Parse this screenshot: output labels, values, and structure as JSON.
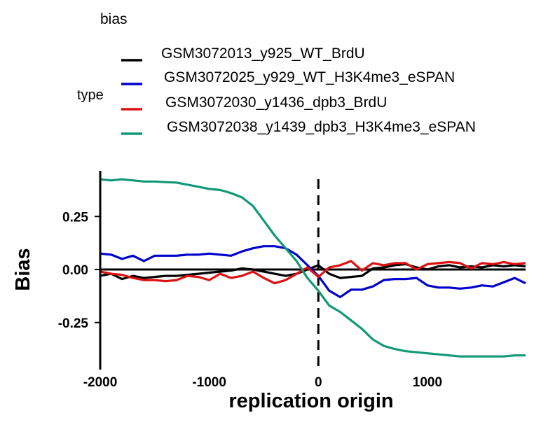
{
  "chart_data": {
    "type": "line",
    "legend": {
      "title": "bias",
      "group_label": "type",
      "placement": "top-left"
    },
    "xlabel": "replication origin",
    "ylabel": "Bias",
    "xlim": [
      -2000,
      1900
    ],
    "ylim": [
      -0.4,
      0.43
    ],
    "x_ticks": [
      {
        "value": -2000,
        "label": "-2000"
      },
      {
        "value": -1000,
        "label": "-1000"
      },
      {
        "value": 0,
        "label": "0"
      },
      {
        "value": 1000,
        "label": "1000"
      }
    ],
    "y_ticks": [
      {
        "value": 0.25,
        "label": "0.25"
      },
      {
        "value": 0.0,
        "label": "0.00"
      },
      {
        "value": -0.25,
        "label": "-0.25"
      }
    ],
    "grid": false,
    "reference_lines": [
      {
        "axis": "y",
        "value": 0,
        "style": "solid",
        "color": "#000000"
      },
      {
        "axis": "x",
        "value": 0,
        "style": "dashed",
        "color": "#000000"
      }
    ],
    "x": [
      -2000,
      -1900,
      -1800,
      -1700,
      -1600,
      -1500,
      -1400,
      -1300,
      -1200,
      -1100,
      -1000,
      -900,
      -800,
      -700,
      -600,
      -500,
      -400,
      -300,
      -200,
      -100,
      0,
      100,
      200,
      300,
      400,
      500,
      600,
      700,
      800,
      900,
      1000,
      1100,
      1200,
      1300,
      1400,
      1500,
      1600,
      1700,
      1800,
      1900
    ],
    "series": [
      {
        "name": "GSM3072013_y925_WT_BrdU",
        "color": "#000000",
        "values": [
          -0.03,
          -0.02,
          -0.045,
          -0.03,
          -0.04,
          -0.035,
          -0.03,
          -0.03,
          -0.025,
          -0.02,
          -0.015,
          -0.01,
          -0.005,
          0.005,
          0.0,
          -0.01,
          -0.02,
          -0.03,
          -0.02,
          0.0,
          0.02,
          -0.02,
          -0.04,
          -0.035,
          -0.03,
          0.005,
          0.01,
          0.02,
          0.025,
          0.01,
          0.0,
          0.015,
          0.02,
          0.01,
          0.015,
          0.01,
          0.02,
          0.015,
          0.02,
          0.015
        ]
      },
      {
        "name": "GSM3072025_y929_WT_H3K4me3_eSPAN",
        "color": "#0000cc",
        "values": [
          0.075,
          0.07,
          0.05,
          0.065,
          0.04,
          0.065,
          0.065,
          0.065,
          0.07,
          0.07,
          0.075,
          0.07,
          0.065,
          0.085,
          0.1,
          0.11,
          0.11,
          0.1,
          0.07,
          0.02,
          -0.03,
          -0.1,
          -0.13,
          -0.095,
          -0.095,
          -0.08,
          -0.05,
          -0.045,
          -0.045,
          -0.04,
          -0.075,
          -0.085,
          -0.085,
          -0.09,
          -0.085,
          -0.075,
          -0.08,
          -0.06,
          -0.04,
          -0.065
        ]
      },
      {
        "name": "GSM3072030_y1436_dpb3_BrdU",
        "color": "#dd1111",
        "values": [
          -0.01,
          -0.02,
          -0.025,
          -0.04,
          -0.05,
          -0.05,
          -0.055,
          -0.05,
          -0.03,
          -0.035,
          -0.05,
          -0.02,
          -0.04,
          -0.03,
          -0.01,
          -0.04,
          -0.065,
          -0.05,
          -0.02,
          0.01,
          -0.035,
          0.01,
          0.02,
          0.04,
          -0.005,
          0.03,
          0.02,
          0.03,
          0.03,
          0.0,
          0.025,
          0.03,
          0.035,
          0.03,
          0.005,
          0.03,
          0.025,
          0.035,
          0.025,
          0.03
        ]
      },
      {
        "name": "GSM3072038_y1439_dpb3_H3K4me3_eSPAN",
        "color": "#119977",
        "values": [
          0.425,
          0.42,
          0.425,
          0.42,
          0.415,
          0.415,
          0.412,
          0.41,
          0.4,
          0.39,
          0.38,
          0.375,
          0.36,
          0.34,
          0.3,
          0.23,
          0.16,
          0.1,
          0.04,
          -0.04,
          -0.1,
          -0.17,
          -0.2,
          -0.24,
          -0.28,
          -0.33,
          -0.36,
          -0.375,
          -0.385,
          -0.39,
          -0.395,
          -0.4,
          -0.405,
          -0.41,
          -0.41,
          -0.41,
          -0.41,
          -0.41,
          -0.405,
          -0.405
        ]
      }
    ]
  }
}
